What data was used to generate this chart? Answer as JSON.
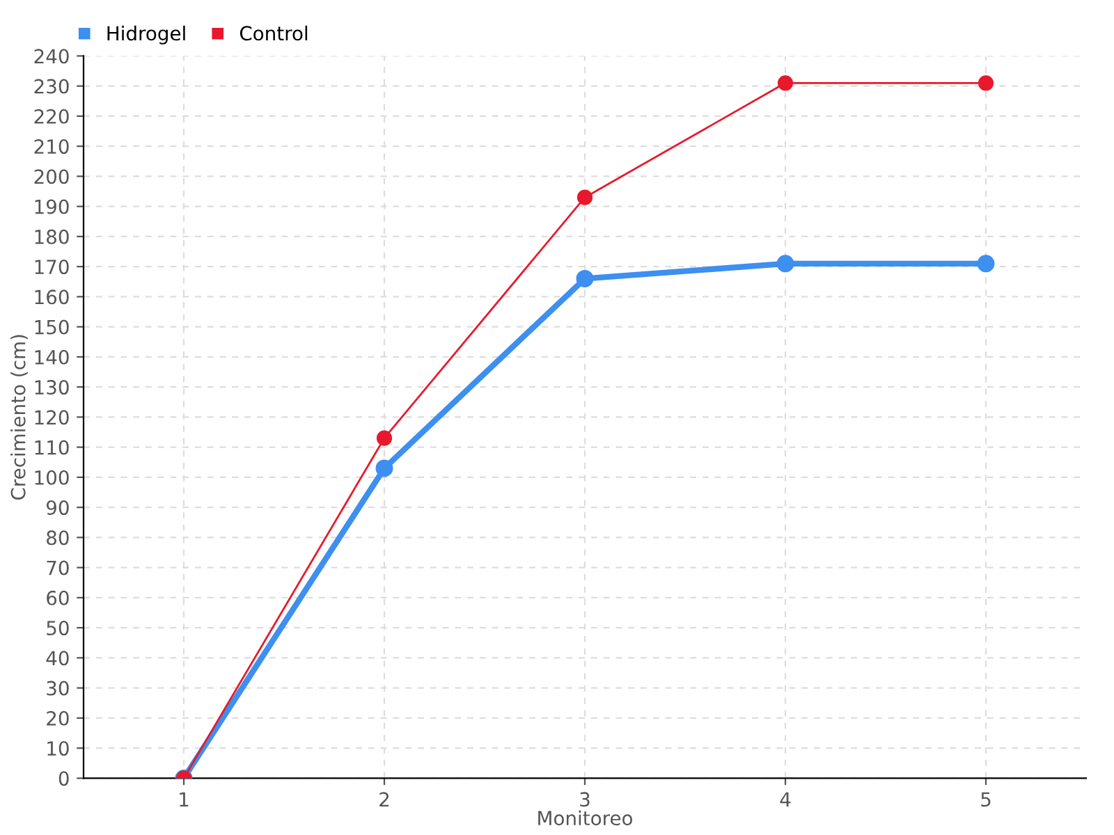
{
  "chart_data": {
    "type": "line",
    "xlabel": "Monitoreo",
    "ylabel": "Crecimiento (cm)",
    "categories": [
      "1",
      "2",
      "3",
      "4",
      "5"
    ],
    "series": [
      {
        "name": "Hidrogel",
        "color": "#3d8ff0",
        "values": [
          0,
          103,
          166,
          171,
          171
        ]
      },
      {
        "name": "Control",
        "color": "#e8192c",
        "values": [
          0,
          113,
          193,
          231,
          231
        ]
      }
    ],
    "ylim": [
      0,
      240
    ],
    "yticks": [
      0,
      10,
      20,
      30,
      40,
      50,
      60,
      70,
      80,
      90,
      100,
      110,
      120,
      130,
      140,
      150,
      160,
      170,
      180,
      190,
      200,
      210,
      220,
      230,
      240
    ],
    "grid": true,
    "legend": "top left",
    "marker": "circle"
  }
}
